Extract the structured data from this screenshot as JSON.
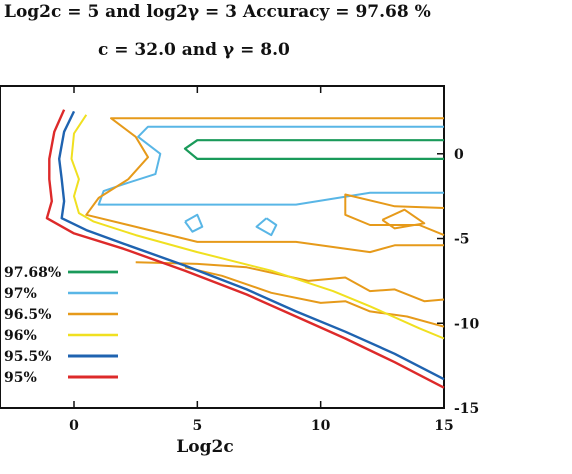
{
  "title_line1": "Log2c = 5 and log2γ = 3 Accuracy = 97.68 %",
  "title_line2": "c = 32.0 and γ = 8.0",
  "chart_data": {
    "type": "line",
    "xlabel": "Log2c",
    "xlim": [
      -3,
      15
    ],
    "ylim": [
      -15,
      4
    ],
    "x_ticks": [
      0,
      5,
      10,
      15
    ],
    "y_ticks": [
      {
        "value": 0,
        "label": "0"
      },
      {
        "value": -5,
        "label": "-5"
      },
      {
        "value": -10,
        "label": "-10"
      },
      {
        "value": -15,
        "label": "-15"
      }
    ],
    "grid": false,
    "legend_position": "bottom-left",
    "series": [
      {
        "name": "97.68%",
        "color": "#1a9a5a",
        "width": 2.2,
        "paths": [
          [
            [
              15,
              0.8
            ],
            [
              5,
              0.8
            ],
            [
              4.5,
              0.3
            ],
            [
              5,
              -0.3
            ],
            [
              6,
              -0.3
            ],
            [
              15,
              -0.3
            ]
          ]
        ]
      },
      {
        "name": "97%",
        "color": "#59b6e6",
        "width": 2,
        "paths": [
          [
            [
              15,
              1.6
            ],
            [
              3,
              1.6
            ],
            [
              2.6,
              1.0
            ],
            [
              3.5,
              0.0
            ],
            [
              3.3,
              -1.2
            ],
            [
              2.0,
              -1.8
            ],
            [
              1.2,
              -2.2
            ],
            [
              1.0,
              -3.0
            ],
            [
              4.0,
              -3.0
            ],
            [
              9.0,
              -3.0
            ],
            [
              12,
              -2.3
            ],
            [
              15,
              -2.3
            ]
          ],
          [
            [
              4.5,
              -4.0
            ],
            [
              5.0,
              -3.6
            ],
            [
              5.2,
              -4.3
            ],
            [
              4.8,
              -4.6
            ],
            [
              4.5,
              -4.0
            ]
          ],
          [
            [
              7.8,
              -3.8
            ],
            [
              8.2,
              -4.2
            ],
            [
              8.0,
              -4.8
            ],
            [
              7.4,
              -4.3
            ],
            [
              7.8,
              -3.8
            ]
          ]
        ]
      },
      {
        "name": "96.5%",
        "color": "#e69a1a",
        "width": 2,
        "paths": [
          [
            [
              15,
              2.1
            ],
            [
              1.5,
              2.1
            ],
            [
              2.5,
              1.0
            ],
            [
              3.0,
              -0.2
            ],
            [
              2.2,
              -1.5
            ],
            [
              1.0,
              -2.6
            ],
            [
              0.5,
              -3.6
            ],
            [
              2.2,
              -4.2
            ],
            [
              5.0,
              -5.2
            ],
            [
              9.0,
              -5.2
            ],
            [
              12.0,
              -5.8
            ],
            [
              13.0,
              -5.4
            ],
            [
              15.0,
              -5.4
            ]
          ],
          [
            [
              15,
              -3.2
            ],
            [
              13.0,
              -3.1
            ],
            [
              11.0,
              -2.4
            ],
            [
              11.0,
              -3.6
            ],
            [
              12.0,
              -4.2
            ],
            [
              14.0,
              -4.2
            ],
            [
              15,
              -4.8
            ]
          ],
          [
            [
              12.5,
              -3.9
            ],
            [
              13.4,
              -3.3
            ],
            [
              14.2,
              -4.1
            ],
            [
              13.0,
              -4.4
            ],
            [
              12.5,
              -3.9
            ]
          ],
          [
            [
              2.5,
              -6.4
            ],
            [
              5.0,
              -6.5
            ],
            [
              7.0,
              -6.7
            ],
            [
              9.5,
              -7.5
            ],
            [
              11.0,
              -7.3
            ],
            [
              12.0,
              -8.1
            ],
            [
              13.0,
              -8.0
            ],
            [
              14.2,
              -8.7
            ],
            [
              15,
              -8.6
            ]
          ],
          [
            [
              15,
              -10.2
            ],
            [
              13.5,
              -9.6
            ],
            [
              12.0,
              -9.3
            ],
            [
              11.0,
              -8.7
            ],
            [
              10.0,
              -8.8
            ],
            [
              8.0,
              -8.2
            ],
            [
              6.0,
              -7.2
            ],
            [
              4.5,
              -6.7
            ]
          ]
        ]
      },
      {
        "name": "96%",
        "color": "#f0e020",
        "width": 2,
        "paths": [
          [
            [
              0.5,
              2.3
            ],
            [
              0.0,
              1.2
            ],
            [
              -0.1,
              -0.3
            ],
            [
              0.2,
              -1.5
            ],
            [
              0.0,
              -2.5
            ],
            [
              0.2,
              -3.5
            ],
            [
              0.8,
              -4.0
            ],
            [
              2.5,
              -4.8
            ],
            [
              5.0,
              -5.8
            ],
            [
              8.0,
              -6.9
            ],
            [
              10.5,
              -8.1
            ],
            [
              12.0,
              -9.0
            ],
            [
              14.0,
              -10.3
            ],
            [
              15,
              -10.9
            ]
          ]
        ]
      },
      {
        "name": "95.5%",
        "color": "#1f63b0",
        "width": 2.4,
        "paths": [
          [
            [
              0.0,
              2.5
            ],
            [
              -0.4,
              1.3
            ],
            [
              -0.6,
              -0.3
            ],
            [
              -0.5,
              -1.5
            ],
            [
              -0.4,
              -2.8
            ],
            [
              -0.5,
              -3.8
            ],
            [
              0.5,
              -4.5
            ],
            [
              2.0,
              -5.3
            ],
            [
              4.5,
              -6.6
            ],
            [
              7.0,
              -8.0
            ],
            [
              9.0,
              -9.3
            ],
            [
              11.0,
              -10.5
            ],
            [
              13.0,
              -11.8
            ],
            [
              15,
              -13.3
            ]
          ]
        ]
      },
      {
        "name": "95%",
        "color": "#dd2a2a",
        "width": 2.4,
        "paths": [
          [
            [
              -0.4,
              2.6
            ],
            [
              -0.8,
              1.3
            ],
            [
              -1.0,
              -0.3
            ],
            [
              -1.0,
              -1.5
            ],
            [
              -0.9,
              -2.8
            ],
            [
              -1.1,
              -3.8
            ],
            [
              0.0,
              -4.7
            ],
            [
              2.0,
              -5.6
            ],
            [
              4.5,
              -6.9
            ],
            [
              7.0,
              -8.3
            ],
            [
              9.0,
              -9.6
            ],
            [
              11.0,
              -10.9
            ],
            [
              13.0,
              -12.3
            ],
            [
              15,
              -13.8
            ]
          ]
        ]
      }
    ]
  }
}
